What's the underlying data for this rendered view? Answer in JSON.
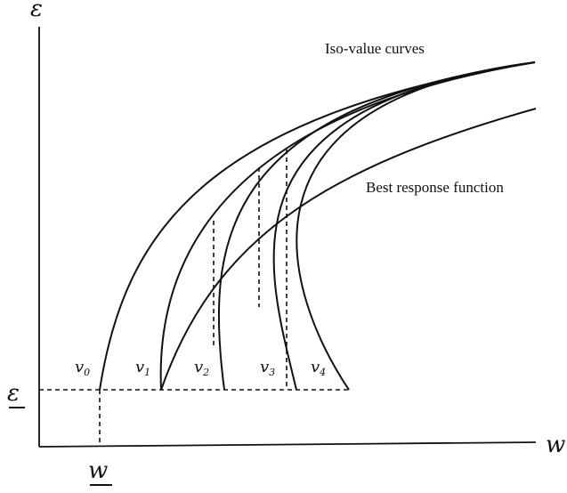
{
  "diagram": {
    "y_axis_label": "ε",
    "x_axis_label": "w",
    "iso_value_label": "Iso-value curves",
    "best_response_label": "Best response function",
    "threshold_epsilon_label": "ε",
    "threshold_w_label": "w",
    "curve_labels": [
      {
        "base": "v",
        "sub": "0"
      },
      {
        "base": "v",
        "sub": "1"
      },
      {
        "base": "v",
        "sub": "2"
      },
      {
        "base": "v",
        "sub": "3"
      },
      {
        "base": "v",
        "sub": "4"
      }
    ],
    "colors": {
      "ink": "#111111",
      "background": "#ffffff"
    }
  }
}
